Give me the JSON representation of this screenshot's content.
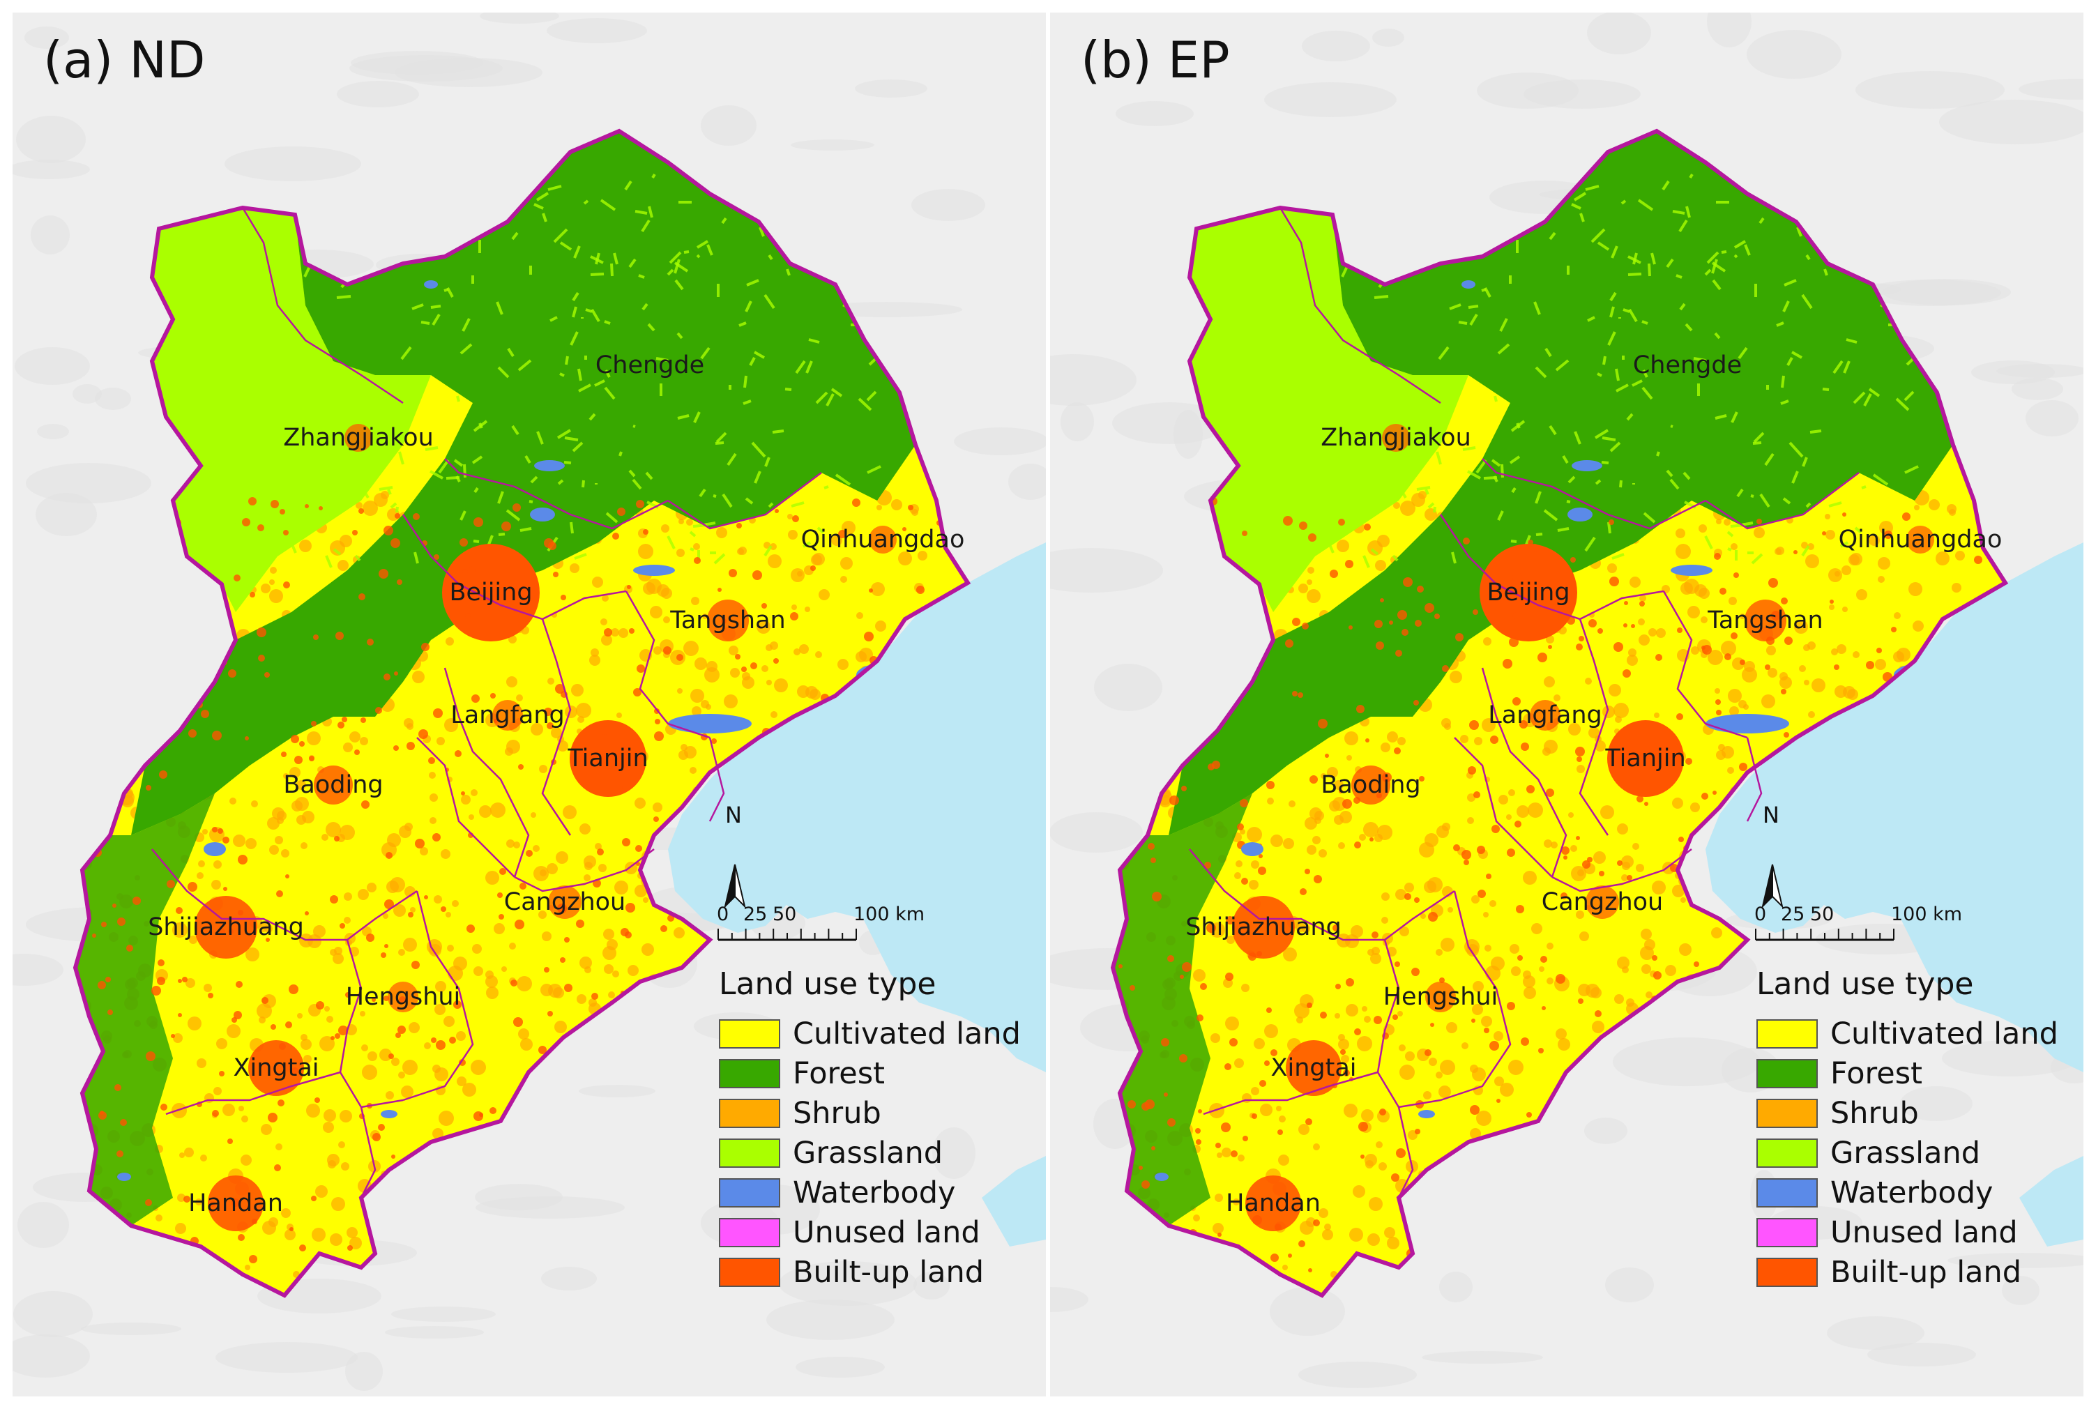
{
  "panels": [
    {
      "id": "a",
      "title": "(a) ND"
    },
    {
      "id": "b",
      "title": "(b) EP"
    }
  ],
  "cities": [
    "Chengde",
    "Zhangjiakou",
    "Qinhuangdao",
    "Beijing",
    "Tangshan",
    "Langfang",
    "Tianjin",
    "Baoding",
    "Cangzhou",
    "Shijiazhuang",
    "Hengshui",
    "Xingtai",
    "Handan"
  ],
  "north_label": "N",
  "scale": {
    "ticks": [
      "0",
      "25",
      "50",
      "100 km"
    ]
  },
  "legend": {
    "title": "Land use type",
    "items": [
      {
        "label": "Cultivated land",
        "color": "#ffff00"
      },
      {
        "label": "Forest",
        "color": "#38a800"
      },
      {
        "label": "Shrub",
        "color": "#ffaa00"
      },
      {
        "label": "Grassland",
        "color": "#aaff00"
      },
      {
        "label": "Waterbody",
        "color": "#5b8ae8"
      },
      {
        "label": "Unused land",
        "color": "#ff55ff"
      },
      {
        "label": "Built-up land",
        "color": "#ff5500"
      }
    ]
  },
  "colors": {
    "boundary": "#b5179e",
    "sea": "#bde8f5",
    "background": "#eeeeee"
  }
}
